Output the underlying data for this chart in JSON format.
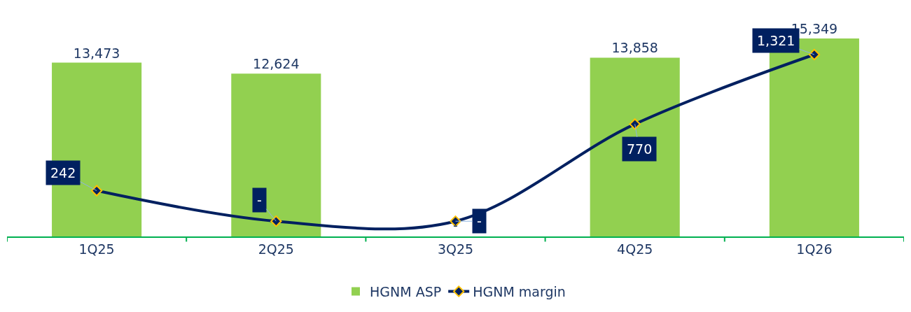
{
  "chart_data": {
    "type": "bar",
    "categories": [
      "1Q25",
      "2Q25",
      "3Q25",
      "4Q25",
      "1Q26"
    ],
    "series": [
      {
        "name": "HGNM ASP",
        "color": "#92d050",
        "values": [
          13473,
          12624,
          null,
          13858,
          15349
        ],
        "value_labels": [
          "13,473",
          "12,624",
          null,
          "13,858",
          "15,349"
        ]
      },
      {
        "name": "HGNM margin",
        "type": "line",
        "axis": "y2",
        "color": "#002060",
        "marker": "diamond",
        "values": [
          242,
          0,
          0,
          770,
          1321
        ],
        "value_labels": [
          "242",
          "-",
          "-",
          "770",
          "1,321"
        ]
      }
    ],
    "annotations": [
      "-"
    ],
    "tick_labels": "x",
    "legend": "bottom"
  }
}
